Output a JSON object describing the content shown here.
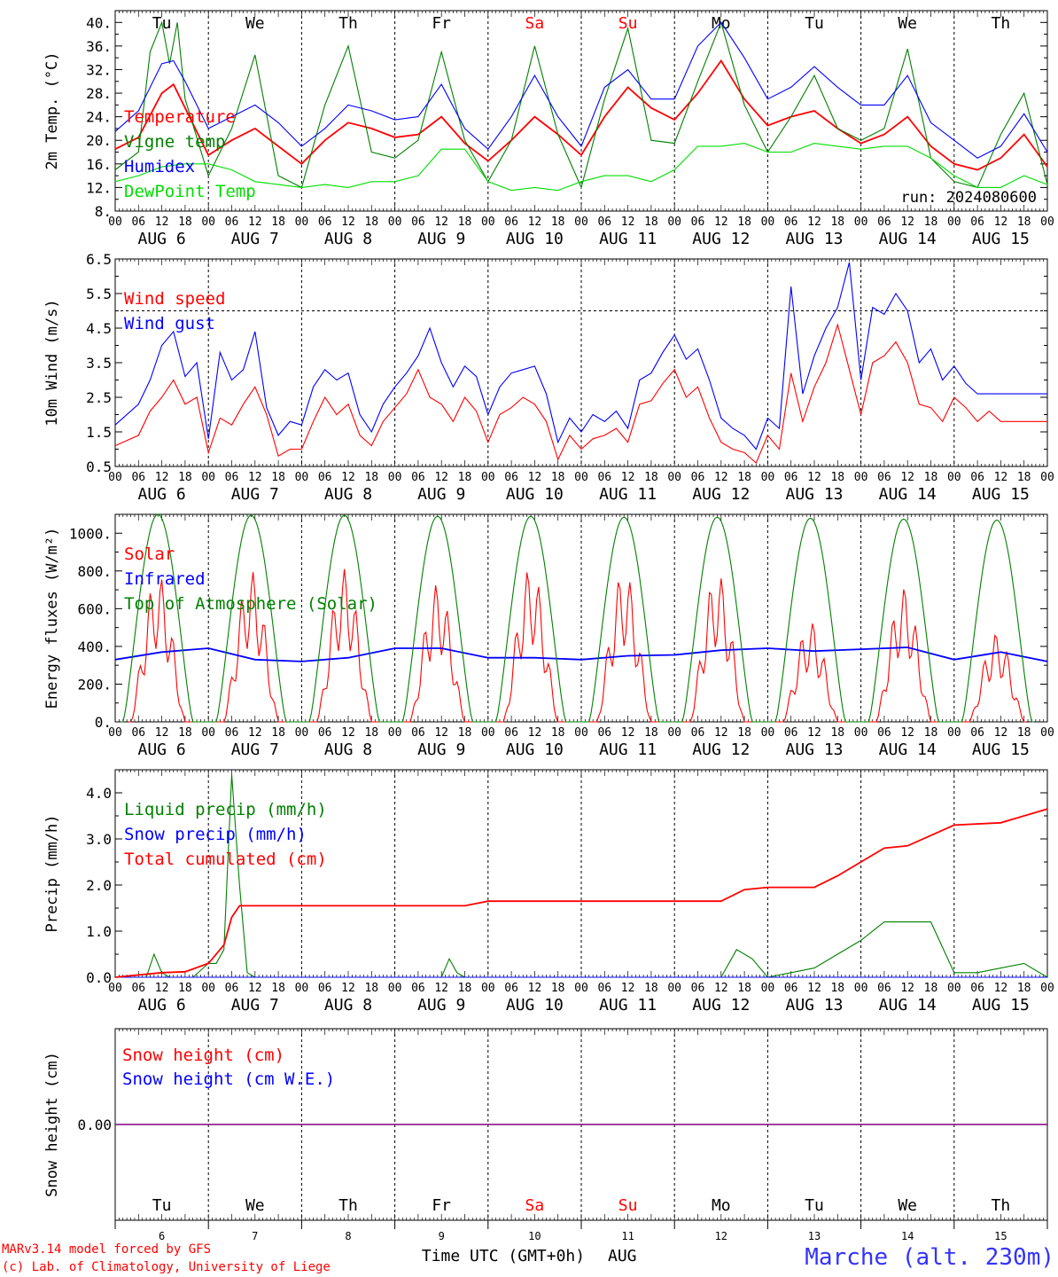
{
  "chart_data": [
    {
      "type": "line",
      "ylabel": "2m Temp. (°C)",
      "yticks": [
        "40.",
        "36.",
        "32.",
        "28.",
        "24.",
        "20.",
        "16.",
        "12.",
        "8."
      ],
      "ylim": [
        8,
        42
      ],
      "annotation": "run: 2024080600",
      "days": [
        {
          "label": "Tu",
          "color": "#000000"
        },
        {
          "label": "We",
          "color": "#000000"
        },
        {
          "label": "Th",
          "color": "#000000"
        },
        {
          "label": "Fr",
          "color": "#000000"
        },
        {
          "label": "Sa",
          "color": "#ff0000"
        },
        {
          "label": "Su",
          "color": "#ff0000"
        },
        {
          "label": "Mo",
          "color": "#000000"
        },
        {
          "label": "Tu",
          "color": "#000000"
        },
        {
          "label": "We",
          "color": "#000000"
        },
        {
          "label": "Th",
          "color": "#000000"
        }
      ],
      "series": [
        {
          "name": "Temperature",
          "color": "#ff0000",
          "x": [
            0,
            6,
            12,
            15,
            18,
            24,
            30,
            36,
            42,
            48,
            54,
            60,
            66,
            72,
            78,
            84,
            90,
            96,
            102,
            108,
            114,
            120,
            126,
            132,
            138,
            144,
            150,
            156,
            162,
            168,
            174,
            180,
            186,
            192,
            198,
            204,
            210,
            216,
            222,
            228,
            234,
            240
          ],
          "y": [
            18.5,
            20.5,
            28,
            29.5,
            25.5,
            17.5,
            20,
            22,
            19,
            16,
            20,
            23,
            22,
            20.5,
            21,
            24,
            19.5,
            16.5,
            20,
            24,
            21,
            17.5,
            24,
            29,
            25.5,
            23.5,
            28,
            33.5,
            27,
            22.5,
            24,
            25,
            22,
            19.5,
            21,
            24,
            19,
            16,
            15,
            17,
            21,
            15.5
          ]
        },
        {
          "name": "Vigne temp",
          "color": "#008000",
          "x": [
            0,
            6,
            9,
            12,
            14,
            16,
            18,
            24,
            30,
            36,
            42,
            48,
            54,
            60,
            66,
            72,
            78,
            84,
            90,
            96,
            102,
            108,
            114,
            120,
            126,
            132,
            138,
            144,
            150,
            156,
            162,
            168,
            174,
            180,
            186,
            192,
            198,
            204,
            210,
            216,
            222,
            228,
            234,
            240
          ],
          "y": [
            15,
            18,
            35,
            40,
            33,
            40,
            27,
            14,
            22,
            34.5,
            14,
            12,
            26,
            36,
            18,
            17,
            20,
            35,
            20,
            13,
            20,
            36,
            21,
            12,
            27,
            39,
            20,
            19.5,
            30,
            40,
            26,
            18,
            24,
            31,
            22,
            20,
            22,
            35.5,
            17,
            13,
            12,
            21,
            28,
            12.5
          ]
        },
        {
          "name": "Humidex",
          "color": "#0000ff",
          "x": [
            0,
            6,
            12,
            15,
            18,
            24,
            30,
            36,
            42,
            48,
            54,
            60,
            66,
            72,
            78,
            84,
            90,
            96,
            102,
            108,
            114,
            120,
            126,
            132,
            138,
            144,
            150,
            156,
            162,
            168,
            174,
            180,
            186,
            192,
            198,
            204,
            210,
            216,
            222,
            228,
            234,
            240
          ],
          "y": [
            21.5,
            25,
            33,
            33.5,
            30,
            22,
            24,
            26,
            23,
            19,
            22,
            26,
            25,
            23.5,
            24,
            29.5,
            22,
            18.5,
            24,
            31,
            24,
            19,
            29,
            32,
            27,
            27,
            36,
            40,
            34,
            27,
            29,
            32.5,
            29,
            26,
            26,
            31,
            23,
            20,
            17,
            19,
            24.5,
            18
          ]
        },
        {
          "name": "DewPoint Temp",
          "color": "#00dd00",
          "x": [
            0,
            6,
            12,
            18,
            24,
            30,
            36,
            42,
            48,
            54,
            60,
            66,
            72,
            78,
            84,
            90,
            96,
            102,
            108,
            114,
            120,
            126,
            132,
            138,
            144,
            150,
            156,
            162,
            168,
            174,
            180,
            186,
            192,
            198,
            204,
            210,
            216,
            222,
            228,
            234,
            240
          ],
          "y": [
            13,
            14,
            15.5,
            16,
            16,
            15,
            13,
            12.5,
            12,
            12.5,
            12,
            13,
            13,
            14,
            18.5,
            18.5,
            13,
            11.5,
            12,
            11.5,
            13,
            14,
            14,
            13,
            15,
            19,
            19,
            19.5,
            18,
            18,
            19.5,
            19,
            18.5,
            19,
            19,
            17,
            14,
            12,
            12,
            14,
            12.5
          ]
        }
      ]
    },
    {
      "type": "line",
      "ylabel": "10m Wind (m/s)",
      "yticks": [
        "6.5",
        "5.5",
        "4.5",
        "3.5",
        "2.5",
        "1.5",
        "0.5"
      ],
      "ylim": [
        0.5,
        6.5
      ],
      "series": [
        {
          "name": "Wind speed",
          "color": "#ff0000",
          "x": [
            0,
            6,
            9,
            12,
            15,
            18,
            21,
            24,
            27,
            30,
            33,
            36,
            39,
            42,
            45,
            48,
            51,
            54,
            57,
            60,
            63,
            66,
            69,
            72,
            75,
            78,
            81,
            84,
            87,
            90,
            93,
            96,
            99,
            102,
            105,
            108,
            111,
            114,
            117,
            120,
            123,
            126,
            129,
            132,
            135,
            138,
            141,
            144,
            147,
            150,
            153,
            156,
            159,
            162,
            165,
            168,
            171,
            174,
            177,
            180,
            183,
            186,
            189,
            192,
            195,
            198,
            201,
            204,
            207,
            210,
            213,
            216,
            219,
            222,
            225,
            228,
            231,
            234,
            237,
            240
          ],
          "y": [
            1.1,
            1.4,
            2.1,
            2.5,
            3,
            2.3,
            2.5,
            0.9,
            1.9,
            1.7,
            2.3,
            2.8,
            2,
            0.8,
            1,
            1.0,
            1.8,
            2.5,
            2,
            2.3,
            1.4,
            1.1,
            1.8,
            2.2,
            2.6,
            3.3,
            2.5,
            2.3,
            1.8,
            2.5,
            2.1,
            1.2,
            2,
            2.2,
            2.5,
            2.3,
            1.8,
            0.7,
            1.4,
            1,
            1.3,
            1.4,
            1.6,
            1.2,
            2.3,
            2.4,
            2.9,
            3.3,
            2.5,
            2.8,
            1.9,
            1.2,
            1,
            0.9,
            0.6,
            1.4,
            1,
            3.2,
            1.8,
            2.8,
            3.5,
            4.6,
            3.3,
            2,
            3.5,
            3.7,
            4.1,
            3.5,
            2.3,
            2.2,
            1.8,
            2.5,
            2.2,
            1.8,
            2.1,
            1.8,
            1.8,
            1.8,
            1.8,
            1.8
          ]
        },
        {
          "name": "Wind gust",
          "color": "#0000ff",
          "x": [
            0,
            6,
            9,
            12,
            15,
            18,
            21,
            24,
            27,
            30,
            33,
            36,
            39,
            42,
            45,
            48,
            51,
            54,
            57,
            60,
            63,
            66,
            69,
            72,
            75,
            78,
            81,
            84,
            87,
            90,
            93,
            96,
            99,
            102,
            105,
            108,
            111,
            114,
            117,
            120,
            123,
            126,
            129,
            132,
            135,
            138,
            141,
            144,
            147,
            150,
            153,
            156,
            159,
            162,
            165,
            168,
            171,
            174,
            177,
            180,
            183,
            186,
            189,
            192,
            195,
            198,
            201,
            204,
            207,
            210,
            213,
            216,
            219,
            222,
            225,
            228,
            231,
            234,
            237,
            240
          ],
          "y": [
            1.7,
            2.3,
            3,
            4,
            4.4,
            3.1,
            3.5,
            1.3,
            3.8,
            3,
            3.3,
            4.4,
            2.2,
            1.4,
            1.8,
            1.7,
            2.8,
            3.3,
            3,
            3.2,
            2,
            1.5,
            2.3,
            2.8,
            3.2,
            3.7,
            4.5,
            3.5,
            2.8,
            3.4,
            3.1,
            2,
            2.8,
            3.2,
            3.3,
            3.4,
            2.6,
            1.2,
            1.9,
            1.5,
            2,
            1.8,
            2.1,
            1.6,
            3,
            3.2,
            3.8,
            4.3,
            3.6,
            3.9,
            3,
            1.9,
            1.6,
            1.4,
            1,
            1.9,
            1.6,
            5.7,
            2.6,
            3.7,
            4.5,
            5.1,
            6.4,
            3,
            5.1,
            4.9,
            5.5,
            5.0,
            3.5,
            3.9,
            3,
            3.4,
            2.9,
            2.6,
            2.6,
            2.6,
            2.6,
            2.6,
            2.6,
            2.6
          ]
        }
      ]
    },
    {
      "type": "line",
      "ylabel": "Energy fluxes (W/m²)",
      "yticks": [
        "1000.",
        "800.",
        "600.",
        "400.",
        "200.",
        "0."
      ],
      "ylim": [
        0,
        1100
      ],
      "series": [
        {
          "name": "Solar",
          "color": "#ff0000",
          "day_peaks": [
            780,
            800,
            810,
            730,
            820,
            800,
            790,
            530,
            710,
            470
          ]
        },
        {
          "name": "Infrared",
          "color": "#0000ff",
          "x": [
            0,
            12,
            24,
            36,
            48,
            60,
            72,
            84,
            96,
            108,
            120,
            132,
            144,
            156,
            168,
            180,
            192,
            204,
            216,
            228,
            240
          ],
          "y": [
            330,
            370,
            390,
            330,
            320,
            340,
            390,
            390,
            340,
            340,
            330,
            350,
            355,
            380,
            390,
            375,
            385,
            395,
            330,
            370,
            320
          ]
        },
        {
          "name": "Top of Atmosphere (Solar)",
          "color": "#008000",
          "day_peaks": [
            1100,
            1095,
            1095,
            1090,
            1090,
            1085,
            1085,
            1080,
            1075,
            1070
          ]
        }
      ]
    },
    {
      "type": "line",
      "ylabel": "Precip (mm/h)",
      "yticks": [
        "4.0",
        "3.0",
        "2.0",
        "1.0",
        "0.0"
      ],
      "ylim": [
        0,
        4.5
      ],
      "series": [
        {
          "name": "Liquid precip (mm/h)",
          "color": "#008000",
          "x": [
            0,
            8,
            10,
            12,
            14,
            20,
            24,
            26,
            28,
            30,
            32,
            34,
            36,
            84,
            86,
            88,
            90,
            96,
            156,
            160,
            164,
            168,
            180,
            186,
            192,
            198,
            210,
            216,
            222,
            234,
            240
          ],
          "y": [
            0,
            0,
            0.5,
            0.1,
            0,
            0,
            0.3,
            0.3,
            0.6,
            4.4,
            2,
            0.1,
            0,
            0,
            0.4,
            0.1,
            0,
            0,
            0,
            0.6,
            0.4,
            0,
            0.2,
            0.5,
            0.8,
            1.2,
            1.2,
            0.1,
            0.1,
            0.3,
            0
          ]
        },
        {
          "name": "Snow precip (mm/h)",
          "color": "#0000ff",
          "x": [
            0,
            240
          ],
          "y": [
            0,
            0
          ]
        },
        {
          "name": "Total cumulated (cm)",
          "color": "#ff0000",
          "x": [
            0,
            12,
            18,
            24,
            28,
            30,
            32,
            36,
            90,
            96,
            108,
            156,
            162,
            168,
            180,
            186,
            192,
            198,
            204,
            216,
            228,
            234,
            240
          ],
          "y": [
            0,
            0.1,
            0.12,
            0.3,
            0.7,
            1.3,
            1.55,
            1.55,
            1.55,
            1.65,
            1.65,
            1.65,
            1.9,
            1.95,
            1.95,
            2.2,
            2.5,
            2.8,
            2.85,
            3.3,
            3.35,
            3.5,
            3.65
          ]
        }
      ]
    },
    {
      "type": "line",
      "ylabel": "Snow height (cm)",
      "yticks": [
        "0.00"
      ],
      "ylim": [
        -1,
        1
      ],
      "series": [
        {
          "name": "Snow height (cm)",
          "color": "#ff0000",
          "x": [
            0,
            240
          ],
          "y": [
            0,
            0
          ]
        },
        {
          "name": "Snow height (cm W.E.)",
          "color": "#0000ff",
          "x": [
            0,
            240
          ],
          "y": [
            0,
            0
          ]
        }
      ]
    }
  ],
  "axis": {
    "hour_ticks": [
      "00",
      "06",
      "12",
      "18"
    ],
    "month": "AUG",
    "date_labels": [
      "AUG  6",
      "AUG  7",
      "AUG  8",
      "AUG  9",
      "AUG 10",
      "AUG 11",
      "AUG 12",
      "AUG 13",
      "AUG 14",
      "AUG 15"
    ],
    "day_numbers": [
      "6",
      "7",
      "8",
      "9",
      "10",
      "11",
      "12",
      "13",
      "14",
      "15"
    ],
    "xlabel": "Time UTC (GMT+0h)",
    "xlabel_month": "AUG"
  },
  "footer": {
    "credit_line1": "MARv3.14 model forced by GFS",
    "credit_line2": "(c) Lab. of Climatology, University of Liege",
    "station": "Marche (alt. 230m)"
  },
  "colors": {
    "credit": "#ff0000",
    "station": "#3333ff",
    "baseline": "#800080"
  }
}
